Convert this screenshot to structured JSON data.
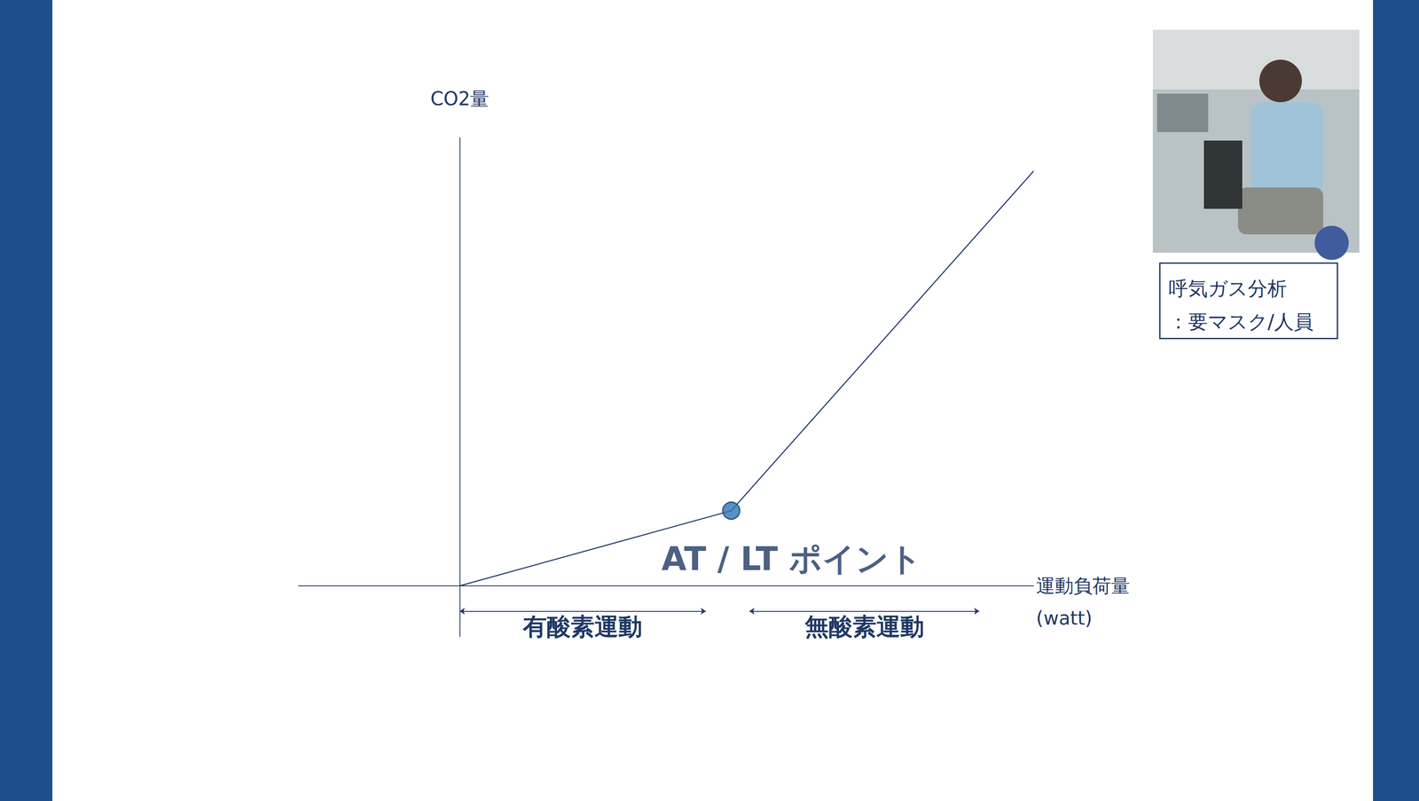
{
  "chart_data": {
    "type": "line",
    "y_label": "CO2量",
    "x_label": "運動負荷量\n(watt)",
    "x": [
      0,
      300,
      634
    ],
    "values": [
      0,
      83,
      458
    ],
    "color": "#1f3864",
    "xlim": [
      -178,
      634
    ],
    "ylim": [
      -56,
      495
    ],
    "tick_labels": false,
    "grid": false,
    "point": {
      "x": 300,
      "y": 83,
      "label": "AT / LT ポイント",
      "color": "#2e75b6"
    },
    "ranges": [
      {
        "label": "有酸素運動",
        "from": 0,
        "to": 272,
        "y": -28
      },
      {
        "label": "無酸素運動",
        "from": 320,
        "to": 574,
        "y": -28
      }
    ],
    "photo_caption": "呼気ガス分析\n：要マスク/人員"
  }
}
